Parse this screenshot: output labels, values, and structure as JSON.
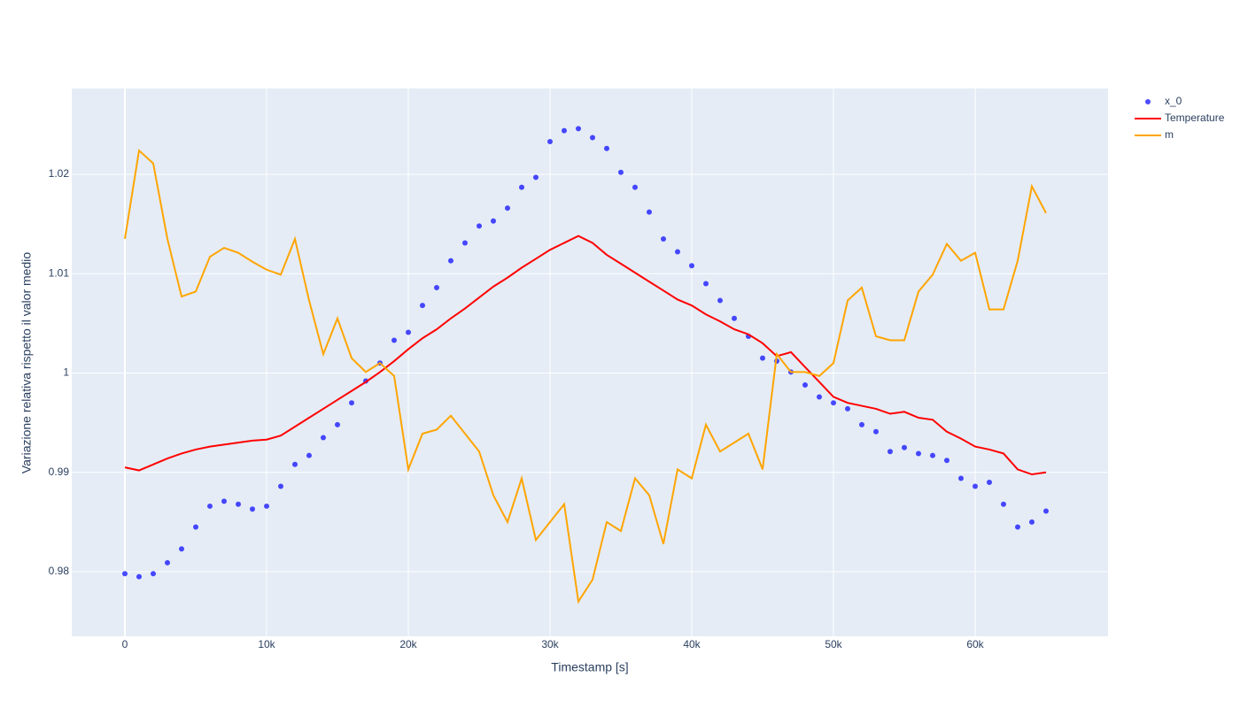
{
  "chart_data": {
    "type": "line",
    "xlabel": "Timestamp [s]",
    "ylabel": "Variazione relativa rispetto il valor medio",
    "x": [
      0,
      1000,
      2000,
      3000,
      4000,
      5000,
      6000,
      7000,
      8000,
      9000,
      10000,
      11000,
      12000,
      13000,
      14000,
      15000,
      16000,
      17000,
      18000,
      19000,
      20000,
      21000,
      22000,
      23000,
      24000,
      25000,
      26000,
      27000,
      28000,
      29000,
      30000,
      31000,
      32000,
      33000,
      34000,
      35000,
      36000,
      37000,
      38000,
      39000,
      40000,
      41000,
      42000,
      43000,
      44000,
      45000,
      46000,
      47000,
      48000,
      49000,
      50000,
      51000,
      52000,
      53000,
      54000,
      55000,
      56000,
      57000,
      58000,
      59000,
      60000,
      61000,
      62000,
      63000,
      64000,
      65000
    ],
    "series": [
      {
        "name": "x_0",
        "mode": "markers",
        "color": "#0000ff",
        "values": [
          0.9798,
          0.9795,
          0.9798,
          0.9809,
          0.9823,
          0.9845,
          0.9866,
          0.9871,
          0.9868,
          0.9863,
          0.9866,
          0.9886,
          0.9908,
          0.9917,
          0.9935,
          0.9948,
          0.997,
          0.9992,
          1.001,
          1.0033,
          1.0041,
          1.0068,
          1.0086,
          1.0113,
          1.0131,
          1.0148,
          1.0153,
          1.0166,
          1.0187,
          1.0197,
          1.0233,
          1.0244,
          1.0246,
          1.0237,
          1.0226,
          1.0202,
          1.0187,
          1.0162,
          1.0135,
          1.0122,
          1.0108,
          1.009,
          1.0073,
          1.0055,
          1.0037,
          1.0015,
          1.0012,
          1.0001,
          0.9988,
          0.9976,
          0.997,
          0.9964,
          0.9948,
          0.9941,
          0.9921,
          0.9925,
          0.9919,
          0.9917,
          0.9912,
          0.9894,
          0.9886,
          0.989,
          0.9868,
          0.9845,
          0.985,
          0.9861
        ]
      },
      {
        "name": "Temperature",
        "mode": "lines",
        "color": "#ff0000",
        "values": [
          0.9905,
          0.9902,
          0.9908,
          0.9914,
          0.9919,
          0.9923,
          0.9926,
          0.9928,
          0.993,
          0.9932,
          0.9933,
          0.9937,
          0.9946,
          0.9955,
          0.9964,
          0.9973,
          0.9982,
          0.9991,
          1.0001,
          1.0012,
          1.0024,
          1.0035,
          1.0044,
          1.0055,
          1.0065,
          1.0076,
          1.0087,
          1.0096,
          1.0106,
          1.0115,
          1.0124,
          1.0131,
          1.0138,
          1.0131,
          1.0119,
          1.011,
          1.0101,
          1.0092,
          1.0083,
          1.0074,
          1.0068,
          1.0059,
          1.0052,
          1.0044,
          1.0039,
          1.003,
          1.0017,
          1.0021,
          1.0006,
          0.9991,
          0.9976,
          0.997,
          0.9967,
          0.9964,
          0.9959,
          0.9961,
          0.9955,
          0.9953,
          0.9941,
          0.9934,
          0.9926,
          0.9923,
          0.9919,
          0.9903,
          0.9898,
          0.99
        ]
      },
      {
        "name": "m",
        "mode": "lines",
        "color": "#ffa500",
        "values": [
          1.0135,
          1.0224,
          1.0211,
          1.0135,
          1.0077,
          1.0082,
          1.0117,
          1.0126,
          1.0121,
          1.0112,
          1.0104,
          1.0099,
          1.0135,
          1.0073,
          1.0019,
          1.0055,
          1.0015,
          1.0001,
          1.001,
          0.9997,
          0.9903,
          0.9939,
          0.9943,
          0.9957,
          0.9939,
          0.9921,
          0.9877,
          0.985,
          0.9894,
          0.9832,
          0.985,
          0.9868,
          0.977,
          0.9792,
          0.985,
          0.9841,
          0.9894,
          0.9877,
          0.9828,
          0.9903,
          0.9894,
          0.9948,
          0.9921,
          0.993,
          0.9939,
          0.9903,
          1.0019,
          1.0001,
          1.0001,
          0.9997,
          1.001,
          1.0073,
          1.0086,
          1.0037,
          1.0033,
          1.0033,
          1.0082,
          1.0099,
          1.013,
          1.0113,
          1.0121,
          1.0064,
          1.0064,
          1.0113,
          1.0188,
          1.0161
        ]
      }
    ],
    "xlim": [
      -3750,
      69375
    ],
    "ylim": [
      0.9735,
      1.02864
    ],
    "xticks": [
      {
        "value": 0,
        "label": "0"
      },
      {
        "value": 10000,
        "label": "10k"
      },
      {
        "value": 20000,
        "label": "20k"
      },
      {
        "value": 30000,
        "label": "30k"
      },
      {
        "value": 40000,
        "label": "40k"
      },
      {
        "value": 50000,
        "label": "50k"
      },
      {
        "value": 60000,
        "label": "60k"
      }
    ],
    "yticks": [
      0.98,
      0.99,
      1,
      1.01,
      1.02
    ],
    "grid": true,
    "legend": "outside-top-right"
  }
}
